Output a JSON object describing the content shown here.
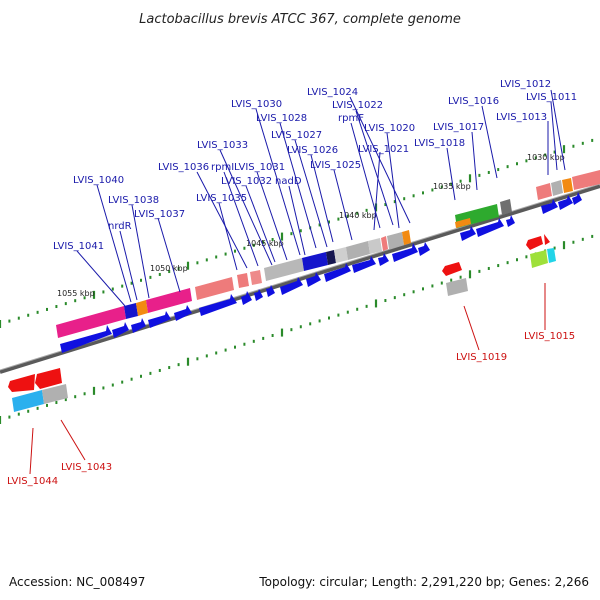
{
  "title": "Lactobacillus brevis ATCC 367, complete genome",
  "footer": {
    "accession": "Accession: NC_008497",
    "topology": "Topology: circular; Length: 2,291,220 bp; Genes: 2,266"
  },
  "colors": {
    "forward_label": "#1a1aaa",
    "reverse_label": "#cc1111",
    "tick": "#2a8a2a",
    "backbone": "#777777"
  },
  "kbp_marks": [
    "1030 kbp",
    "1035 kbp",
    "1040 kbp",
    "1045 kbp",
    "1050 kbp",
    "1055 kbp"
  ],
  "forward_labels": [
    "LVIS_1012",
    "LVIS_1011",
    "LVIS_1013",
    "LVIS_1016",
    "LVIS_1017",
    "LVIS_1018",
    "LVIS_1024",
    "LVIS_1022",
    "rpmF",
    "LVIS_1020",
    "LVIS_1021",
    "LVIS_1030",
    "LVIS_1028",
    "LVIS_1027",
    "LVIS_1026",
    "LVIS_1025",
    "LVIS_1033",
    "LVIS_1036",
    "rpmI",
    "LVIS_1031",
    "LVIS_1032",
    "nadD",
    "LVIS_1035",
    "LVIS_1040",
    "LVIS_1038",
    "nrdR",
    "LVIS_1037",
    "LVIS_1041"
  ],
  "reverse_labels": [
    "LVIS_1015",
    "LVIS_1019",
    "LVIS_1043",
    "LVIS_1044"
  ]
}
